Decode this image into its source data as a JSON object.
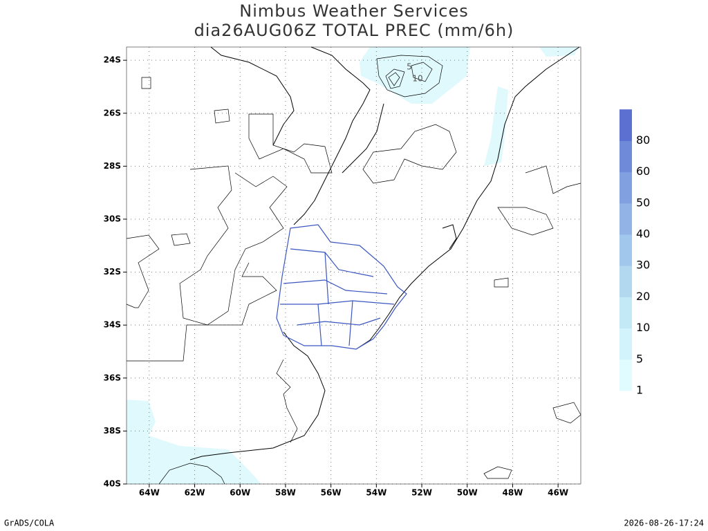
{
  "chart_data": {
    "type": "map",
    "title": "Nimbus Weather Services",
    "subtitle": "dia26AUG06Z TOTAL PREC (mm/6h)",
    "xlim": [
      -65,
      -45
    ],
    "ylim": [
      -40,
      -23.5
    ],
    "xticks": [
      {
        "value": -64,
        "label": "64W"
      },
      {
        "value": -62,
        "label": "62W"
      },
      {
        "value": -60,
        "label": "60W"
      },
      {
        "value": -58,
        "label": "58W"
      },
      {
        "value": -56,
        "label": "56W"
      },
      {
        "value": -54,
        "label": "54W"
      },
      {
        "value": -52,
        "label": "52W"
      },
      {
        "value": -50,
        "label": "50W"
      },
      {
        "value": -48,
        "label": "48W"
      },
      {
        "value": -46,
        "label": "46W"
      }
    ],
    "yticks": [
      {
        "value": -24,
        "label": "24S"
      },
      {
        "value": -26,
        "label": "26S"
      },
      {
        "value": -28,
        "label": "28S"
      },
      {
        "value": -30,
        "label": "30S"
      },
      {
        "value": -32,
        "label": "32S"
      },
      {
        "value": -34,
        "label": "34S"
      },
      {
        "value": -36,
        "label": "36S"
      },
      {
        "value": -38,
        "label": "38S"
      },
      {
        "value": -40,
        "label": "40S"
      }
    ],
    "grid": true,
    "colorbar": {
      "levels": [
        1,
        5,
        10,
        20,
        30,
        40,
        50,
        60,
        80
      ],
      "colors": [
        "#e1fcfe",
        "#d2f3fb",
        "#c3e8f6",
        "#b2d8f0",
        "#a2c7ec",
        "#91b3e6",
        "#80a0e0",
        "#6e8ad9",
        "#5b70d0"
      ]
    },
    "contour_labels": [
      5,
      10
    ],
    "footer_left": "GrADS/COLA",
    "footer_right": "2026-08-26-17:24"
  }
}
